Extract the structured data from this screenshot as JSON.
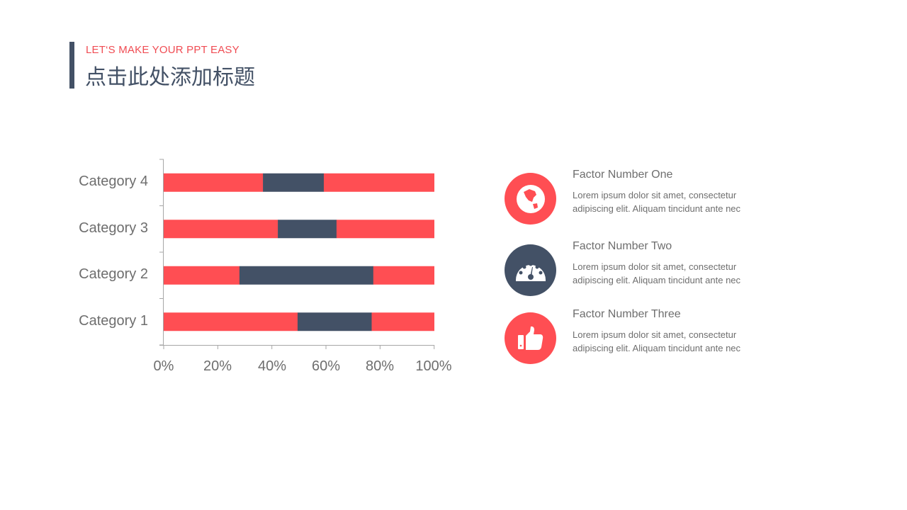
{
  "header": {
    "subtitle": "LET‘S MAKE YOUR PPT EASY",
    "title": "点击此处添加标题"
  },
  "colors": {
    "red": "#ff4e53",
    "navy": "#435166",
    "text": "#6e6e6e"
  },
  "chart_data": {
    "type": "bar",
    "orientation": "horizontal",
    "stacked": "100%",
    "categories": [
      "Category 1",
      "Category 2",
      "Category 3",
      "Category 4"
    ],
    "series": [
      {
        "values": [
          49.5,
          28.0,
          42.2,
          36.7
        ],
        "color": "#ff4e53"
      },
      {
        "values": [
          27.4,
          49.5,
          21.7,
          22.5
        ],
        "color": "#435166"
      },
      {
        "values": [
          23.1,
          22.5,
          36.1,
          40.8
        ],
        "color": "#ff4e53"
      }
    ],
    "xlim": [
      0,
      100
    ],
    "xticks": [
      "0%",
      "20%",
      "40%",
      "60%",
      "80%",
      "100%"
    ],
    "grid": false,
    "legend": "none"
  },
  "factors": [
    {
      "title": "Factor Number One",
      "body": "Lorem ipsum dolor sit amet, consectetur adipiscing elit. Aliquam tincidunt ante nec",
      "icon": "globe-icon",
      "color": "#ff4e53"
    },
    {
      "title": "Factor Number Two",
      "body": "Lorem ipsum dolor sit amet, consectetur adipiscing elit. Aliquam tincidunt ante nec",
      "icon": "speedometer-icon",
      "color": "#435166"
    },
    {
      "title": "Factor Number Three",
      "body": "Lorem ipsum dolor sit amet, consectetur adipiscing elit. Aliquam tincidunt ante nec",
      "icon": "thumbs-up-icon",
      "color": "#ff4e53"
    }
  ]
}
